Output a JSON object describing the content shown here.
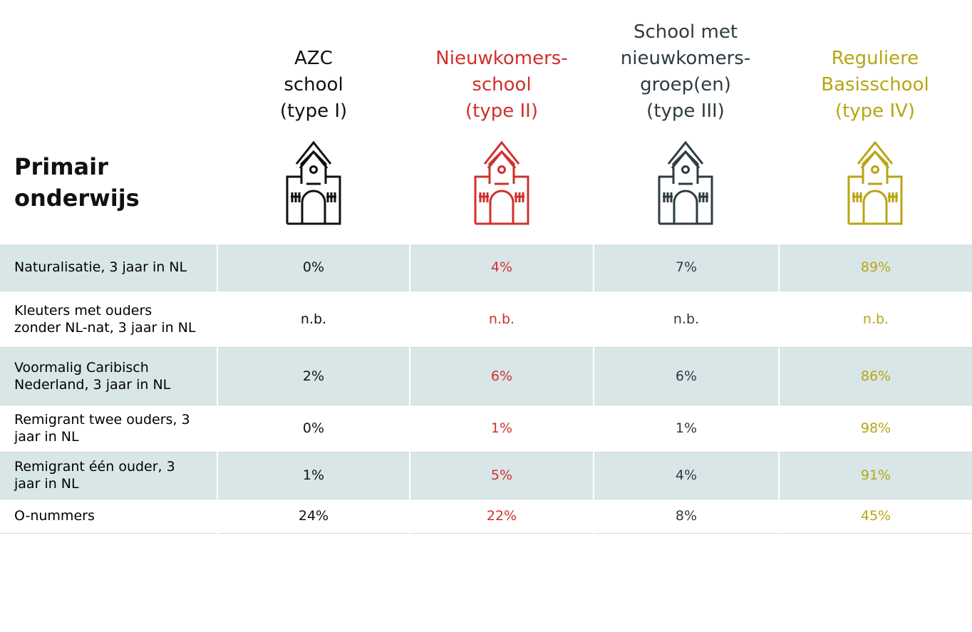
{
  "header": {
    "title_lines": [
      "Primair",
      "onderwijs"
    ]
  },
  "columns": [
    {
      "lines": [
        "AZC",
        "school",
        "(type I)"
      ],
      "color": "#111111"
    },
    {
      "lines": [
        "Nieuwkomers-",
        "school",
        "(type II)"
      ],
      "color": "#d0302c"
    },
    {
      "lines": [
        "School met",
        "nieuwkomers-",
        "groep(en)",
        "(type III)"
      ],
      "color": "#2e3b42"
    },
    {
      "lines": [
        "Reguliere",
        "Basisschool",
        "(type IV)"
      ],
      "color": "#b8a514"
    }
  ],
  "table": {
    "rows": [
      {
        "label": "Naturalisatie, 3 jaar in NL",
        "cells": [
          "0%",
          "4%",
          "7%",
          "89%"
        ]
      },
      {
        "label": "Kleuters met ouders zonder NL-nat, 3 jaar in NL",
        "cells": [
          "n.b.",
          "n.b.",
          "n.b.",
          "n.b."
        ]
      },
      {
        "label": "Voormalig Caribisch Nederland, 3 jaar in NL",
        "cells": [
          "2%",
          "6%",
          "6%",
          "86%"
        ]
      },
      {
        "label": "Remigrant twee ouders, 3 jaar in NL",
        "cells": [
          "0%",
          "1%",
          "1%",
          "98%"
        ]
      },
      {
        "label": "Remigrant één ouder, 3 jaar in NL",
        "cells": [
          "1%",
          "5%",
          "4%",
          "91%"
        ]
      },
      {
        "label": "O-nummers",
        "cells": [
          "24%",
          "22%",
          "8%",
          "45%"
        ]
      }
    ]
  }
}
